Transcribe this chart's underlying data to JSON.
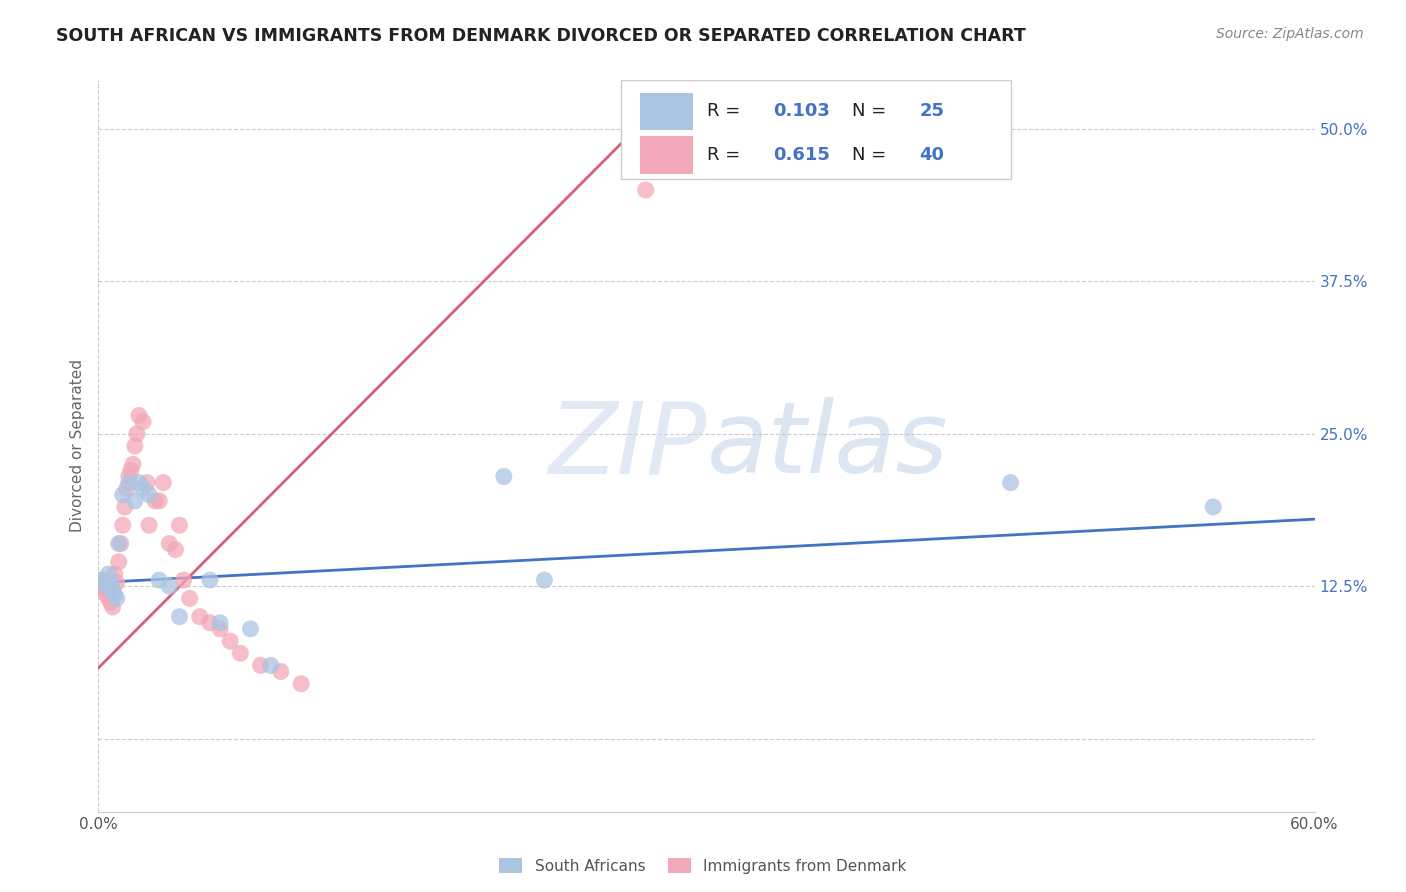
{
  "title": "SOUTH AFRICAN VS IMMIGRANTS FROM DENMARK DIVORCED OR SEPARATED CORRELATION CHART",
  "source": "Source: ZipAtlas.com",
  "ylabel": "Divorced or Separated",
  "xlim": [
    0.0,
    0.6
  ],
  "ylim": [
    -0.06,
    0.54
  ],
  "xticks": [
    0.0,
    0.1,
    0.2,
    0.3,
    0.4,
    0.5,
    0.6
  ],
  "xticklabels": [
    "0.0%",
    "",
    "",
    "",
    "",
    "",
    "60.0%"
  ],
  "yticks": [
    0.0,
    0.125,
    0.25,
    0.375,
    0.5
  ],
  "yticklabels": [
    "",
    "12.5%",
    "25.0%",
    "37.5%",
    "50.0%"
  ],
  "blue_R": 0.103,
  "blue_N": 25,
  "pink_R": 0.615,
  "pink_N": 40,
  "blue_color": "#aac4e2",
  "pink_color": "#f2a8b8",
  "blue_line_color": "#4472c4",
  "pink_line_color": "#d4607a",
  "legend_label_1": "South Africans",
  "legend_label_2": "Immigrants from Denmark",
  "watermark_zip": "ZIP",
  "watermark_atlas": "atlas",
  "background_color": "#ffffff",
  "blue_dots_x": [
    0.002,
    0.004,
    0.005,
    0.006,
    0.007,
    0.008,
    0.009,
    0.01,
    0.012,
    0.015,
    0.018,
    0.02,
    0.022,
    0.025,
    0.03,
    0.035,
    0.04,
    0.055,
    0.06,
    0.075,
    0.085,
    0.2,
    0.22,
    0.45,
    0.55
  ],
  "blue_dots_y": [
    0.13,
    0.125,
    0.135,
    0.128,
    0.122,
    0.118,
    0.115,
    0.16,
    0.2,
    0.21,
    0.195,
    0.21,
    0.205,
    0.2,
    0.13,
    0.125,
    0.1,
    0.13,
    0.095,
    0.09,
    0.06,
    0.215,
    0.13,
    0.21,
    0.19
  ],
  "pink_dots_x": [
    0.001,
    0.002,
    0.003,
    0.004,
    0.005,
    0.006,
    0.007,
    0.008,
    0.009,
    0.01,
    0.011,
    0.012,
    0.013,
    0.014,
    0.015,
    0.016,
    0.017,
    0.018,
    0.019,
    0.02,
    0.022,
    0.024,
    0.025,
    0.028,
    0.03,
    0.032,
    0.035,
    0.038,
    0.04,
    0.042,
    0.045,
    0.05,
    0.055,
    0.06,
    0.065,
    0.07,
    0.08,
    0.09,
    0.1,
    0.27
  ],
  "pink_dots_y": [
    0.13,
    0.125,
    0.122,
    0.118,
    0.115,
    0.112,
    0.108,
    0.135,
    0.128,
    0.145,
    0.16,
    0.175,
    0.19,
    0.205,
    0.215,
    0.22,
    0.225,
    0.24,
    0.25,
    0.265,
    0.26,
    0.21,
    0.175,
    0.195,
    0.195,
    0.21,
    0.16,
    0.155,
    0.175,
    0.13,
    0.115,
    0.1,
    0.095,
    0.09,
    0.08,
    0.07,
    0.06,
    0.055,
    0.045,
    0.45
  ],
  "blue_trend_x": [
    0.0,
    0.6
  ],
  "blue_trend_y": [
    0.128,
    0.18
  ],
  "pink_trend_x": [
    0.0,
    0.265
  ],
  "pink_trend_y": [
    0.058,
    0.5
  ]
}
